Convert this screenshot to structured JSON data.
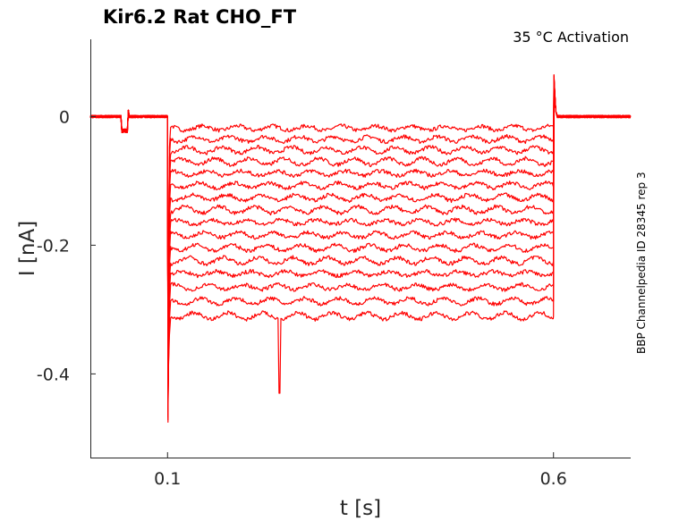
{
  "chart_data": {
    "type": "line",
    "title": "Kir6.2  Rat  CHO_FT",
    "annotation": "35 °C  Activation",
    "side_label": "BBP Channelpedia ID 28345 rep 3",
    "xlabel": "t [s]",
    "ylabel": "I [nA]",
    "xlim": [
      0.0,
      0.7
    ],
    "ylim": [
      -0.53,
      0.12
    ],
    "x_ticks": [
      0.1,
      0.6
    ],
    "x_tick_labels": [
      "0.1",
      "0.6"
    ],
    "y_ticks": [
      0,
      -0.2,
      -0.4
    ],
    "y_tick_labels": [
      "0",
      "-0.2",
      "-0.4"
    ],
    "grid": false,
    "line_color": "#ff0000",
    "step_start": 0.1,
    "step_end": 0.6,
    "holding_current": 0.0,
    "series": [
      {
        "values": [
          -0.018
        ]
      },
      {
        "values": [
          -0.035
        ]
      },
      {
        "values": [
          -0.052
        ]
      },
      {
        "values": [
          -0.07
        ]
      },
      {
        "values": [
          -0.088
        ]
      },
      {
        "values": [
          -0.107
        ]
      },
      {
        "values": [
          -0.126
        ]
      },
      {
        "values": [
          -0.145
        ]
      },
      {
        "values": [
          -0.164
        ]
      },
      {
        "values": [
          -0.184
        ]
      },
      {
        "values": [
          -0.204
        ]
      },
      {
        "values": [
          -0.224
        ]
      },
      {
        "values": [
          -0.244
        ]
      },
      {
        "values": [
          -0.265
        ]
      },
      {
        "values": [
          -0.287
        ]
      },
      {
        "values": [
          -0.31
        ]
      }
    ],
    "artifacts": [
      {
        "t": 0.1,
        "i": -0.475
      },
      {
        "t": 0.245,
        "i": -0.43
      },
      {
        "t": 0.6,
        "i": 0.065
      }
    ]
  }
}
